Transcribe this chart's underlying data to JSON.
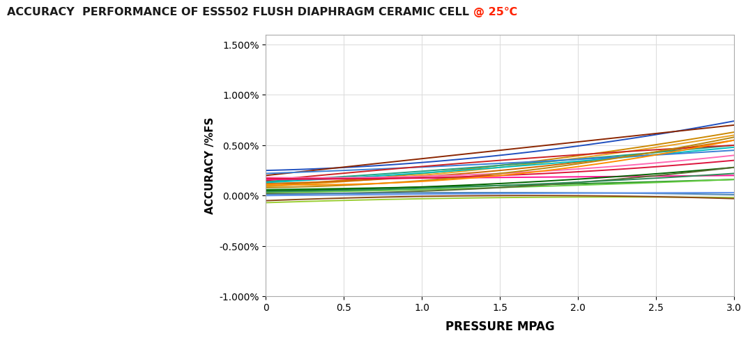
{
  "title_main": "ACCURACY  PERFORMANCE OF ESS502 FLUSH DIAPHRAGM CERAMIC CELL ",
  "title_highlight": "@ 25℃",
  "xlabel": "PRESSURE MPAG",
  "ylabel": "ACCURACY /%FS",
  "xlim": [
    0,
    3.0
  ],
  "ylim": [
    -0.01,
    0.016
  ],
  "yticks": [
    -0.01,
    -0.005,
    0.0,
    0.005,
    0.01,
    0.015
  ],
  "ytick_labels": [
    "-1.000%",
    "-0.500%",
    "0.000%",
    "0.500%",
    "1.000%",
    "1.500%"
  ],
  "xticks": [
    0,
    0.5,
    1.0,
    1.5,
    2.0,
    2.5,
    3.0
  ],
  "xtick_labels": [
    "0",
    "0.5",
    "1.0",
    "1.5",
    "2.0",
    "2.5",
    "3.0"
  ],
  "lines_data": [
    {
      "color": "#1F4FBF",
      "y0": 0.0025,
      "y_mid": 0.004,
      "y_end": 0.0074
    },
    {
      "color": "#8B2500",
      "y0": 0.002,
      "y_mid": 0.0045,
      "y_end": 0.007
    },
    {
      "color": "#CC8800",
      "y0": 0.001,
      "y_mid": 0.003,
      "y_end": 0.0063
    },
    {
      "color": "#E8A020",
      "y0": 0.0009,
      "y_mid": 0.0028,
      "y_end": 0.006
    },
    {
      "color": "#CC6600",
      "y0": 0.0012,
      "y_mid": 0.0025,
      "y_end": 0.0055
    },
    {
      "color": "#20A080",
      "y0": 0.0014,
      "y_mid": 0.003,
      "y_end": 0.005
    },
    {
      "color": "#00BFBF",
      "y0": 0.0013,
      "y_mid": 0.0028,
      "y_end": 0.0048
    },
    {
      "color": "#3A7FD5",
      "y0": 0.0022,
      "y_mid": 0.0032,
      "y_end": 0.0045
    },
    {
      "color": "#CC2222",
      "y0": 0.0015,
      "y_mid": 0.0035,
      "y_end": 0.005
    },
    {
      "color": "#FF69B4",
      "y0": 0.0018,
      "y_mid": 0.0022,
      "y_end": 0.004
    },
    {
      "color": "#FF1493",
      "y0": 0.0016,
      "y_mid": 0.0018,
      "y_end": 0.002
    },
    {
      "color": "#228B22",
      "y0": 0.0006,
      "y_mid": 0.001,
      "y_end": 0.0016
    },
    {
      "color": "#66CC44",
      "y0": 0.0003,
      "y_mid": 0.0008,
      "y_end": 0.0016
    },
    {
      "color": "#006400",
      "y0": 0.0005,
      "y_mid": 0.0012,
      "y_end": 0.0028
    },
    {
      "color": "#556B2F",
      "y0": 0.0002,
      "y_mid": 0.0008,
      "y_end": 0.0028
    },
    {
      "color": "#4682B4",
      "y0": 0.0001,
      "y_mid": 0.0003,
      "y_end": 0.0001
    },
    {
      "color": "#6495ED",
      "y0": 0.0,
      "y_mid": 0.0002,
      "y_end": 0.0003
    },
    {
      "color": "#B8860B",
      "y0": 0.0008,
      "y_mid": 0.0022,
      "y_end": 0.0058
    },
    {
      "color": "#DC143C",
      "y0": 0.0017,
      "y_mid": 0.002,
      "y_end": 0.0035
    },
    {
      "color": "#2E8B57",
      "y0": 0.0004,
      "y_mid": 0.001,
      "y_end": 0.0022
    },
    {
      "color": "#9ACD32",
      "y0": -0.0007,
      "y_mid": -0.0002,
      "y_end": -0.0002
    },
    {
      "color": "#8B4513",
      "y0": -0.0005,
      "y_mid": 0.0,
      "y_end": -0.0003
    },
    {
      "color": "#FF8C00",
      "y0": 0.0011,
      "y_mid": 0.002,
      "y_end": 0.0055
    }
  ],
  "background_color": "#FFFFFF",
  "grid_color": "#DDDDDD",
  "title_color": "#1a1a1a",
  "highlight_color": "#FF2200"
}
